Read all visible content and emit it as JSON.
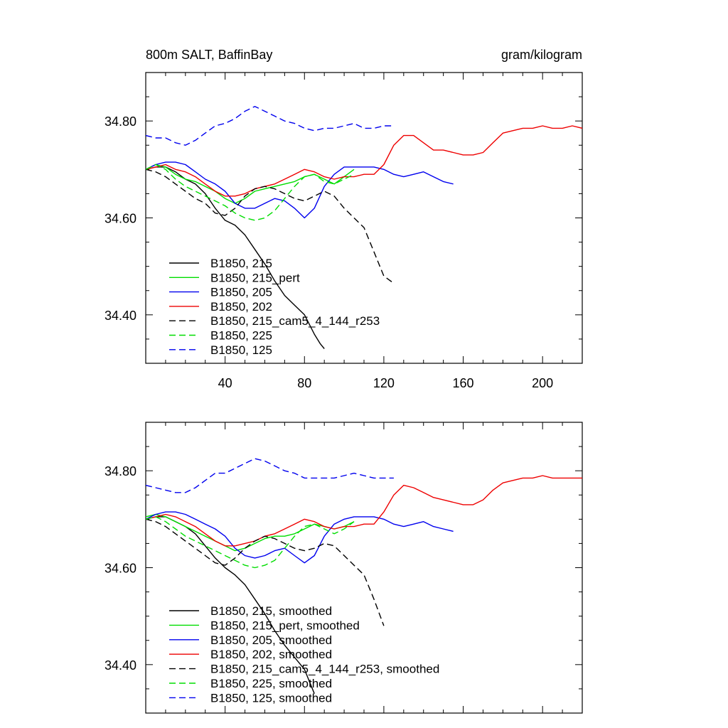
{
  "chart_data": [
    {
      "type": "line",
      "title": "800m SALT, BaffinBay",
      "units": "gram/kilogram",
      "xlim": [
        0,
        220
      ],
      "ylim": [
        34.3,
        34.9
      ],
      "xticks": [
        40,
        80,
        120,
        160,
        200
      ],
      "xtick_labels": [
        "40",
        "80",
        "120",
        "160",
        "200"
      ],
      "yticks": [
        34.4,
        34.6,
        34.8
      ],
      "ytick_labels": [
        "34.40",
        "34.60",
        "34.80"
      ],
      "series": [
        {
          "name": "B1850, 215",
          "color": "#000000",
          "dash": false,
          "x": [
            0,
            5,
            10,
            15,
            20,
            25,
            30,
            35,
            40,
            45,
            50,
            55,
            60,
            65,
            70,
            75,
            80,
            85,
            88,
            90
          ],
          "y": [
            34.7,
            34.705,
            34.705,
            34.695,
            34.68,
            34.67,
            34.65,
            34.62,
            34.595,
            34.585,
            34.565,
            34.535,
            34.505,
            34.47,
            34.44,
            34.42,
            34.4,
            34.36,
            34.34,
            34.33
          ]
        },
        {
          "name": "B1850, 215_pert",
          "color": "#00dd00",
          "dash": false,
          "x": [
            0,
            5,
            10,
            15,
            20,
            25,
            30,
            35,
            40,
            45,
            50,
            55,
            60,
            65,
            70,
            75,
            80,
            85,
            90,
            95,
            100,
            105
          ],
          "y": [
            34.7,
            34.71,
            34.705,
            34.69,
            34.68,
            34.675,
            34.665,
            34.655,
            34.64,
            34.63,
            34.64,
            34.655,
            34.66,
            34.665,
            34.67,
            34.675,
            34.685,
            34.69,
            34.68,
            34.67,
            34.685,
            34.7
          ]
        },
        {
          "name": "B1850, 205",
          "color": "#0000ee",
          "dash": false,
          "x": [
            0,
            5,
            10,
            15,
            20,
            25,
            30,
            35,
            40,
            45,
            50,
            55,
            60,
            65,
            70,
            75,
            80,
            85,
            90,
            95,
            100,
            105,
            110,
            115,
            120,
            125,
            130,
            135,
            140,
            145,
            150,
            155
          ],
          "y": [
            34.7,
            34.71,
            34.715,
            34.715,
            34.71,
            34.695,
            34.68,
            34.67,
            34.655,
            34.63,
            34.62,
            34.62,
            34.63,
            34.64,
            34.635,
            34.62,
            34.6,
            34.62,
            34.665,
            34.69,
            34.705,
            34.705,
            34.705,
            34.705,
            34.7,
            34.69,
            34.685,
            34.69,
            34.695,
            34.685,
            34.675,
            34.67
          ]
        },
        {
          "name": "B1850, 202",
          "color": "#ee0000",
          "dash": false,
          "x": [
            0,
            5,
            10,
            15,
            20,
            25,
            30,
            35,
            40,
            45,
            50,
            55,
            60,
            65,
            70,
            75,
            80,
            85,
            90,
            95,
            100,
            105,
            110,
            115,
            120,
            125,
            130,
            135,
            140,
            145,
            150,
            155,
            160,
            165,
            170,
            175,
            180,
            185,
            190,
            195,
            200,
            205,
            210,
            215,
            220
          ],
          "y": [
            34.7,
            34.705,
            34.71,
            34.7,
            34.695,
            34.685,
            34.67,
            34.655,
            34.645,
            34.645,
            34.65,
            34.66,
            34.665,
            34.67,
            34.68,
            34.69,
            34.7,
            34.695,
            34.685,
            34.68,
            34.685,
            34.685,
            34.69,
            34.69,
            34.71,
            34.75,
            34.77,
            34.77,
            34.755,
            34.74,
            34.74,
            34.735,
            34.73,
            34.73,
            34.735,
            34.755,
            34.775,
            34.78,
            34.785,
            34.785,
            34.79,
            34.785,
            34.785,
            34.79,
            34.785
          ]
        },
        {
          "name": "B1850, 215_cam5_4_144_r253",
          "color": "#000000",
          "dash": true,
          "x": [
            0,
            5,
            10,
            15,
            20,
            25,
            30,
            35,
            40,
            45,
            50,
            55,
            60,
            65,
            70,
            75,
            80,
            85,
            90,
            95,
            100,
            105,
            110,
            115,
            120,
            125
          ],
          "y": [
            34.7,
            34.695,
            34.685,
            34.67,
            34.655,
            34.64,
            34.63,
            34.61,
            34.605,
            34.62,
            34.645,
            34.66,
            34.665,
            34.66,
            34.65,
            34.64,
            34.635,
            34.645,
            34.655,
            34.645,
            34.62,
            34.6,
            34.58,
            34.53,
            34.48,
            34.465
          ]
        },
        {
          "name": "B1850, 225",
          "color": "#00dd00",
          "dash": true,
          "x": [
            0,
            5,
            10,
            15,
            20,
            25,
            30,
            35,
            40,
            45,
            50,
            55,
            60,
            65,
            70,
            75,
            80,
            85,
            90,
            95,
            100,
            105
          ],
          "y": [
            34.7,
            34.71,
            34.7,
            34.68,
            34.665,
            34.655,
            34.645,
            34.635,
            34.625,
            34.61,
            34.6,
            34.595,
            34.6,
            34.615,
            34.64,
            34.665,
            34.685,
            34.69,
            34.675,
            34.67,
            34.68,
            34.69
          ]
        },
        {
          "name": "B1850, 125",
          "color": "#0000ee",
          "dash": true,
          "x": [
            0,
            5,
            10,
            15,
            20,
            25,
            30,
            35,
            40,
            45,
            50,
            55,
            60,
            65,
            70,
            75,
            80,
            85,
            90,
            95,
            100,
            105,
            110,
            115,
            120,
            125
          ],
          "y": [
            34.77,
            34.765,
            34.765,
            34.755,
            34.75,
            34.76,
            34.775,
            34.79,
            34.795,
            34.805,
            34.82,
            34.83,
            34.82,
            34.81,
            34.8,
            34.795,
            34.785,
            34.78,
            34.785,
            34.785,
            34.79,
            34.795,
            34.785,
            34.785,
            34.79,
            34.79
          ]
        }
      ]
    },
    {
      "type": "line",
      "title": "",
      "units": "",
      "xlim": [
        0,
        220
      ],
      "ylim": [
        34.3,
        34.9
      ],
      "xticks": [
        40,
        80,
        120,
        160,
        200
      ],
      "xtick_labels": [],
      "yticks": [
        34.4,
        34.6,
        34.8
      ],
      "ytick_labels": [
        "34.40",
        "34.60",
        "34.80"
      ],
      "series": [
        {
          "name": "B1850, 215, smoothed",
          "color": "#000000",
          "dash": false,
          "x": [
            0,
            5,
            10,
            15,
            20,
            25,
            30,
            35,
            40,
            45,
            50,
            55,
            60,
            65,
            70,
            75,
            80,
            85
          ],
          "y": [
            34.7,
            34.705,
            34.705,
            34.695,
            34.685,
            34.67,
            34.645,
            34.62,
            34.6,
            34.585,
            34.565,
            34.535,
            34.505,
            34.47,
            34.44,
            34.415,
            34.39,
            34.34
          ]
        },
        {
          "name": "B1850, 215_pert, smoothed",
          "color": "#00dd00",
          "dash": false,
          "x": [
            0,
            5,
            10,
            15,
            20,
            25,
            30,
            35,
            40,
            45,
            50,
            55,
            60,
            65,
            70,
            75,
            80,
            85,
            90,
            95,
            100,
            105
          ],
          "y": [
            34.705,
            34.71,
            34.705,
            34.695,
            34.685,
            34.675,
            34.665,
            34.655,
            34.645,
            34.635,
            34.64,
            34.65,
            34.66,
            34.665,
            34.665,
            34.67,
            34.68,
            34.69,
            34.685,
            34.68,
            34.685,
            34.695
          ]
        },
        {
          "name": "B1850, 205, smoothed",
          "color": "#0000ee",
          "dash": false,
          "x": [
            0,
            5,
            10,
            15,
            20,
            25,
            30,
            35,
            40,
            45,
            50,
            55,
            60,
            65,
            70,
            75,
            80,
            85,
            90,
            95,
            100,
            105,
            110,
            115,
            120,
            125,
            130,
            135,
            140,
            145,
            150,
            155
          ],
          "y": [
            34.7,
            34.71,
            34.715,
            34.715,
            34.71,
            34.7,
            34.69,
            34.68,
            34.665,
            34.64,
            34.625,
            34.62,
            34.625,
            34.635,
            34.64,
            34.625,
            34.61,
            34.625,
            34.665,
            34.69,
            34.7,
            34.705,
            34.705,
            34.705,
            34.7,
            34.69,
            34.685,
            34.69,
            34.695,
            34.685,
            34.68,
            34.675
          ]
        },
        {
          "name": "B1850, 202, smoothed",
          "color": "#ee0000",
          "dash": false,
          "x": [
            0,
            5,
            10,
            15,
            20,
            25,
            30,
            35,
            40,
            45,
            50,
            55,
            60,
            65,
            70,
            75,
            80,
            85,
            90,
            95,
            100,
            105,
            110,
            115,
            120,
            125,
            130,
            135,
            140,
            145,
            150,
            155,
            160,
            165,
            170,
            175,
            180,
            185,
            190,
            195,
            200,
            205,
            210,
            215,
            220
          ],
          "y": [
            34.7,
            34.705,
            34.71,
            34.705,
            34.695,
            34.685,
            34.67,
            34.655,
            34.645,
            34.645,
            34.65,
            34.655,
            34.665,
            34.67,
            34.68,
            34.69,
            34.7,
            34.695,
            34.685,
            34.68,
            34.685,
            34.685,
            34.69,
            34.69,
            34.715,
            34.75,
            34.77,
            34.765,
            34.755,
            34.745,
            34.74,
            34.735,
            34.73,
            34.73,
            34.74,
            34.76,
            34.775,
            34.78,
            34.785,
            34.785,
            34.79,
            34.785,
            34.785,
            34.785,
            34.785
          ]
        },
        {
          "name": "B1850, 215_cam5_4_144_r253, smoothed",
          "color": "#000000",
          "dash": true,
          "x": [
            0,
            5,
            10,
            15,
            20,
            25,
            30,
            35,
            40,
            45,
            50,
            55,
            60,
            65,
            70,
            75,
            80,
            85,
            90,
            95,
            100,
            105,
            110,
            115,
            120
          ],
          "y": [
            34.7,
            34.695,
            34.685,
            34.67,
            34.655,
            34.64,
            34.625,
            34.61,
            34.605,
            34.62,
            34.64,
            34.655,
            34.665,
            34.66,
            34.65,
            34.64,
            34.635,
            34.64,
            34.65,
            34.645,
            34.625,
            34.605,
            34.585,
            34.535,
            34.48
          ]
        },
        {
          "name": "B1850, 225, smoothed",
          "color": "#00dd00",
          "dash": true,
          "x": [
            0,
            5,
            10,
            15,
            20,
            25,
            30,
            35,
            40,
            45,
            50,
            55,
            60,
            65,
            70,
            75,
            80,
            85,
            90,
            95,
            100,
            105
          ],
          "y": [
            34.7,
            34.705,
            34.695,
            34.68,
            34.665,
            34.655,
            34.645,
            34.635,
            34.625,
            34.615,
            34.605,
            34.6,
            34.605,
            34.615,
            34.64,
            34.665,
            34.685,
            34.69,
            34.68,
            34.67,
            34.68,
            34.695
          ]
        },
        {
          "name": "B1850, 125, smoothed",
          "color": "#0000ee",
          "dash": true,
          "x": [
            0,
            5,
            10,
            15,
            20,
            25,
            30,
            35,
            40,
            45,
            50,
            55,
            60,
            65,
            70,
            75,
            80,
            85,
            90,
            95,
            100,
            105,
            110,
            115,
            120,
            125
          ],
          "y": [
            34.77,
            34.765,
            34.76,
            34.755,
            34.755,
            34.765,
            34.78,
            34.795,
            34.795,
            34.805,
            34.815,
            34.825,
            34.82,
            34.81,
            34.8,
            34.795,
            34.785,
            34.785,
            34.785,
            34.785,
            34.79,
            34.795,
            34.79,
            34.785,
            34.785,
            34.785
          ]
        }
      ]
    }
  ]
}
